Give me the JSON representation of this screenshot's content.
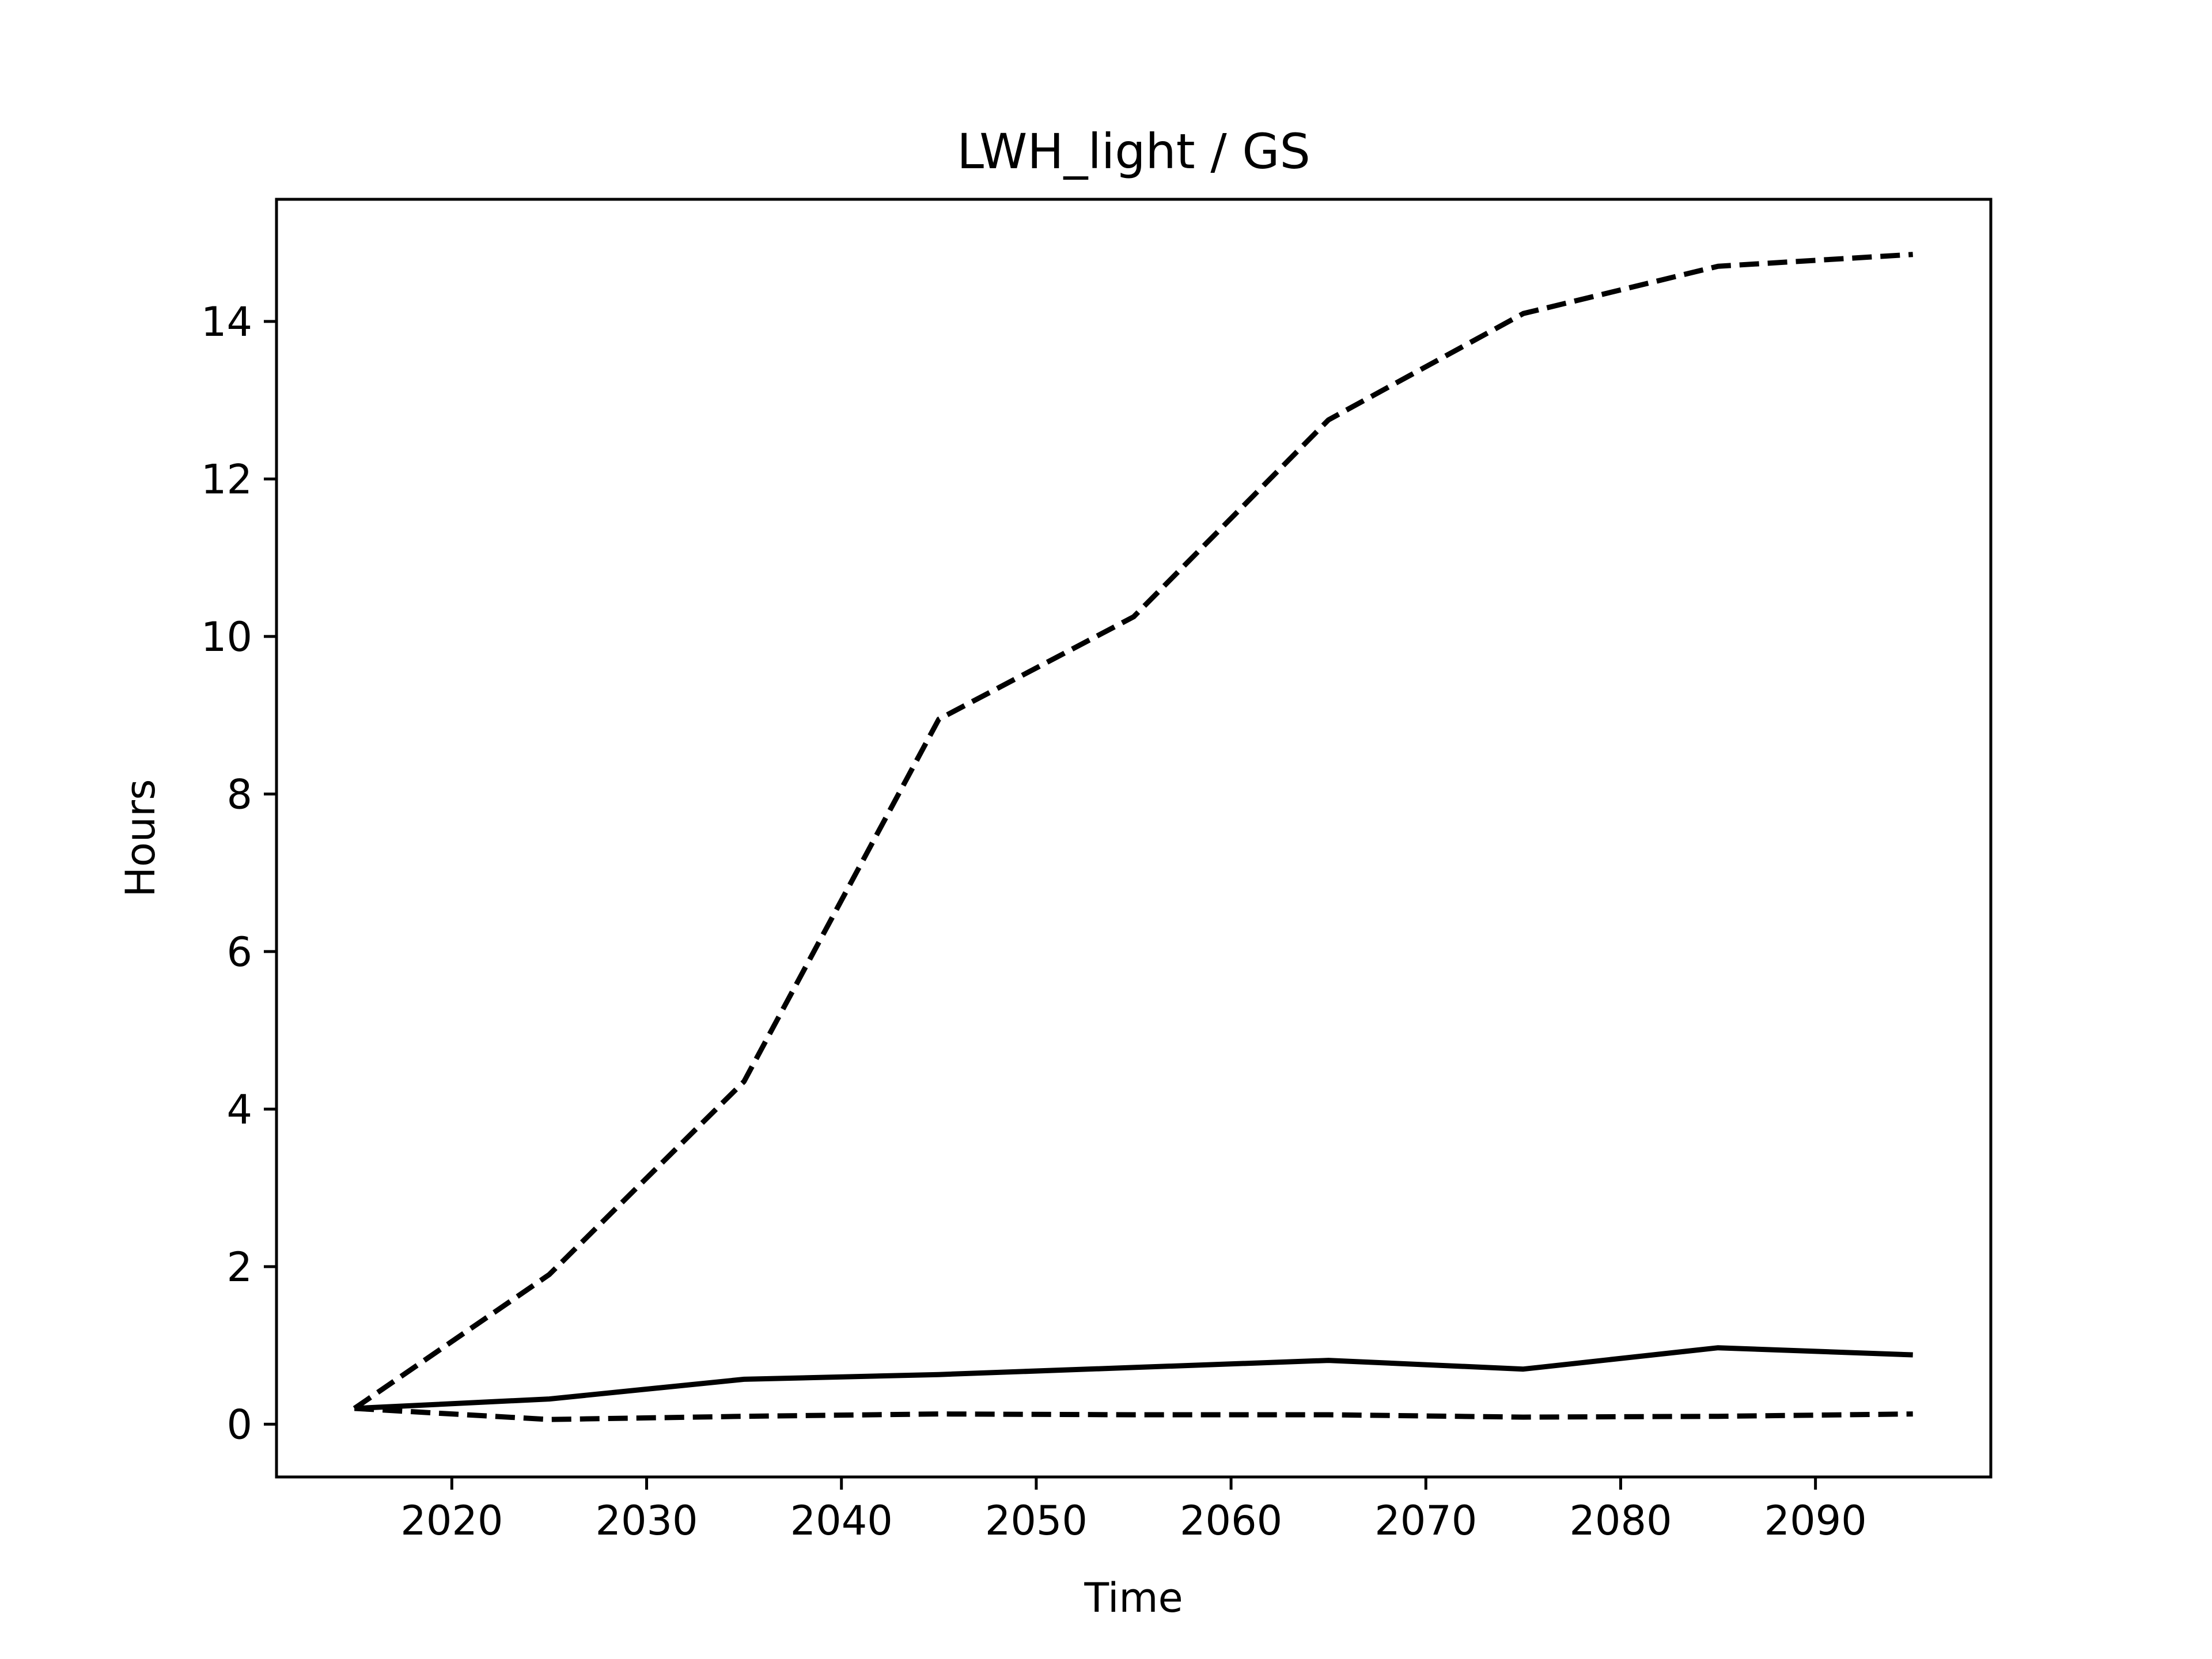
{
  "chart_data": {
    "type": "line",
    "title": "LWH_light / GS",
    "xlabel": "Time",
    "ylabel": "Hours",
    "xlim": [
      2011,
      2099
    ],
    "ylim": [
      -0.67,
      15.55
    ],
    "xticks": [
      2020,
      2030,
      2040,
      2050,
      2060,
      2070,
      2080,
      2090
    ],
    "yticks": [
      0,
      2,
      4,
      6,
      8,
      10,
      12,
      14
    ],
    "grid": false,
    "x": [
      2015,
      2025,
      2035,
      2045,
      2055,
      2065,
      2075,
      2085,
      2095
    ],
    "series": [
      {
        "style": "dashed",
        "color": "#000000",
        "values": [
          0.2,
          1.9,
          4.35,
          8.95,
          10.25,
          12.75,
          14.1,
          14.7,
          14.85
        ]
      },
      {
        "style": "solid",
        "color": "#000000",
        "values": [
          0.2,
          0.32,
          0.57,
          0.63,
          0.72,
          0.81,
          0.7,
          0.97,
          0.88
        ]
      },
      {
        "style": "dashed",
        "color": "#000000",
        "values": [
          0.2,
          0.06,
          0.1,
          0.13,
          0.12,
          0.12,
          0.09,
          0.1,
          0.13
        ]
      }
    ]
  }
}
